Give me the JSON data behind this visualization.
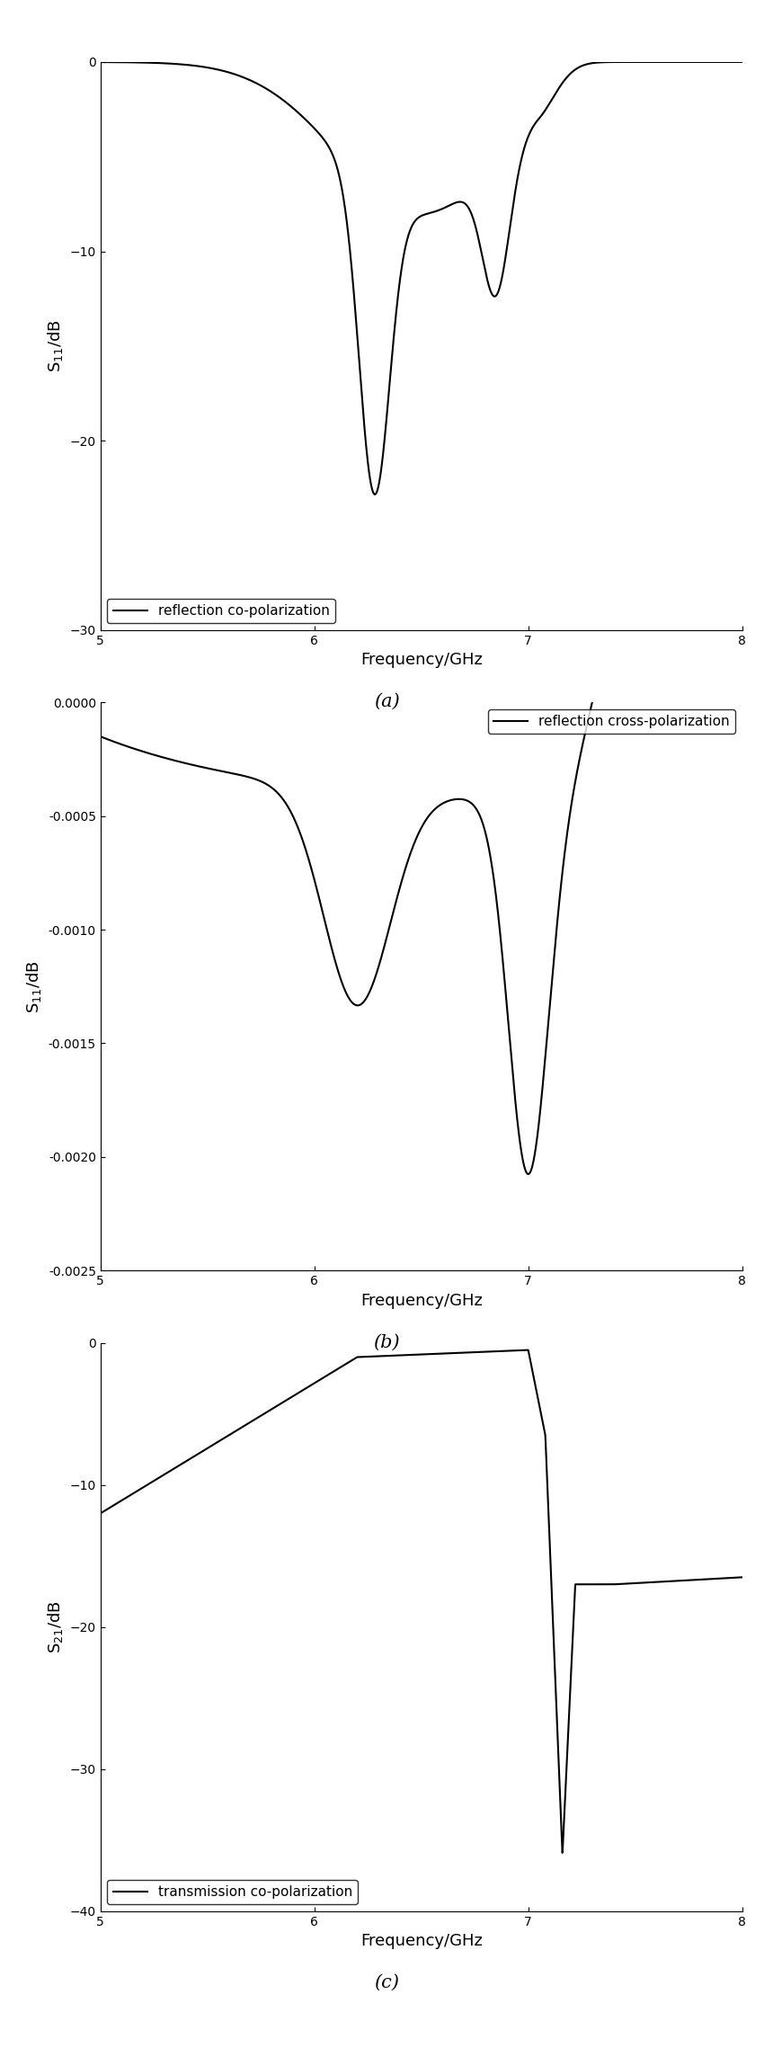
{
  "fig_width": 8.6,
  "fig_height": 22.98,
  "background_color": "#ffffff",
  "line_color": "#000000",
  "line_width": 1.5,
  "plot_a": {
    "xlabel": "Frequency/GHz",
    "ylabel": "S$_{11}$/dB",
    "xlim": [
      5,
      8
    ],
    "ylim": [
      -30,
      0
    ],
    "yticks": [
      0,
      -10,
      -20,
      -30
    ],
    "xticks": [
      5,
      6,
      7,
      8
    ],
    "legend_label": "reflection co-polarization",
    "legend_loc": "lower left",
    "label": "(a)"
  },
  "plot_b": {
    "xlabel": "Frequency/GHz",
    "ylabel": "S$_{11}$/dB",
    "xlim": [
      5,
      8
    ],
    "ylim": [
      -0.0025,
      0.0
    ],
    "yticks": [
      0.0,
      -0.0005,
      -0.001,
      -0.0015,
      -0.002,
      -0.0025
    ],
    "xticks": [
      5,
      6,
      7,
      8
    ],
    "legend_label": "reflection cross-polarization",
    "legend_loc": "upper right",
    "label": "(b)"
  },
  "plot_c": {
    "xlabel": "Frequency/GHz",
    "ylabel": "S$_{21}$/dB",
    "xlim": [
      5,
      8
    ],
    "ylim": [
      -40,
      0
    ],
    "yticks": [
      0,
      -10,
      -20,
      -30,
      -40
    ],
    "xticks": [
      5,
      6,
      7,
      8
    ],
    "legend_label": "transmission co-polarization",
    "legend_loc": "lower left",
    "label": "(c)"
  }
}
